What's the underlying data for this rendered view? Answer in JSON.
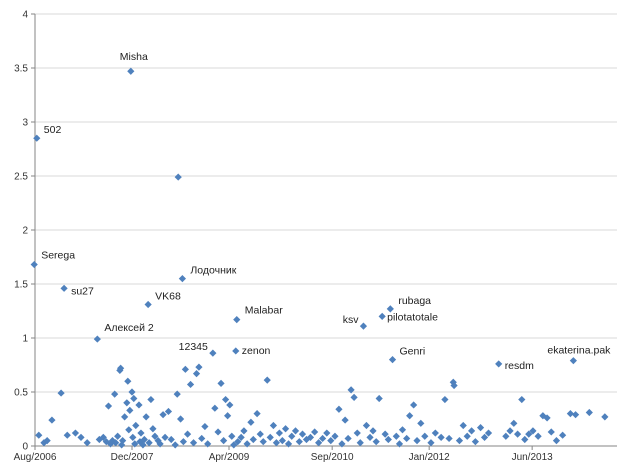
{
  "chart_data": {
    "type": "scatter",
    "title": "",
    "xlabel": "",
    "ylabel": "",
    "x_axis_type": "date",
    "xlim": [
      "2006-08-01",
      "2014-08-01"
    ],
    "ylim": [
      0,
      4
    ],
    "y_ticks": [
      "0",
      "0.5",
      "1",
      "1.5",
      "2",
      "2.5",
      "3",
      "3.5",
      "4"
    ],
    "x_ticks": [
      {
        "date": "2006-08-01",
        "label": "Aug/2006"
      },
      {
        "date": "2007-12-01",
        "label": "Dec/2007"
      },
      {
        "date": "2009-04-01",
        "label": "Apr/2009"
      },
      {
        "date": "2010-09-01",
        "label": "Sep/2010"
      },
      {
        "date": "2012-01-01",
        "label": "Jan/2012"
      },
      {
        "date": "2013-06-01",
        "label": "Jun/2013"
      }
    ],
    "grid": "horizontal",
    "legend": "none",
    "marker": "diamond",
    "marker_color": "#4f81bd",
    "labeled_points": [
      {
        "label": "Misha",
        "x": "2007-11-25",
        "y": 3.47
      },
      {
        "label": "502",
        "x": "2006-08-10",
        "y": 2.85
      },
      {
        "label": "",
        "x": "2008-07-20",
        "y": 2.49
      },
      {
        "label": "Serega",
        "x": "2006-07-28",
        "y": 1.68
      },
      {
        "label": "Лодочник",
        "x": "2008-08-10",
        "y": 1.55
      },
      {
        "label": "su27",
        "x": "2006-12-25",
        "y": 1.46
      },
      {
        "label": "VK68",
        "x": "2008-02-20",
        "y": 1.31
      },
      {
        "label": "rubaga",
        "x": "2011-06-20",
        "y": 1.27
      },
      {
        "label": "pilotatotale",
        "x": "2011-05-10",
        "y": 1.2
      },
      {
        "label": "Malabar",
        "x": "2009-05-10",
        "y": 1.17
      },
      {
        "label": "ksv",
        "x": "2011-02-05",
        "y": 1.11
      },
      {
        "label": "Алексей 2",
        "x": "2007-06-10",
        "y": 0.99
      },
      {
        "label": "12345",
        "x": "2009-01-10",
        "y": 0.86
      },
      {
        "label": "zenon",
        "x": "2009-05-05",
        "y": 0.88
      },
      {
        "label": "Genri",
        "x": "2011-07-01",
        "y": 0.8
      },
      {
        "label": "ekaterina.pak",
        "x": "2013-12-25",
        "y": 0.79
      },
      {
        "label": "resdm",
        "x": "2012-12-15",
        "y": 0.76
      }
    ],
    "points": [
      {
        "x": "2006-08-20",
        "y": 0.1
      },
      {
        "x": "2006-09-15",
        "y": 0.03
      },
      {
        "x": "2006-10-01",
        "y": 0.05
      },
      {
        "x": "2006-10-25",
        "y": 0.24
      },
      {
        "x": "2006-12-10",
        "y": 0.49
      },
      {
        "x": "2007-01-10",
        "y": 0.1
      },
      {
        "x": "2007-02-20",
        "y": 0.12
      },
      {
        "x": "2007-03-20",
        "y": 0.08
      },
      {
        "x": "2007-04-20",
        "y": 0.03
      },
      {
        "x": "2007-06-20",
        "y": 0.06
      },
      {
        "x": "2007-07-10",
        "y": 0.08
      },
      {
        "x": "2007-07-25",
        "y": 0.04
      },
      {
        "x": "2007-08-05",
        "y": 0.37
      },
      {
        "x": "2007-08-15",
        "y": 0.02
      },
      {
        "x": "2007-08-25",
        "y": 0.05
      },
      {
        "x": "2007-09-05",
        "y": 0.48
      },
      {
        "x": "2007-09-10",
        "y": 0.03
      },
      {
        "x": "2007-09-20",
        "y": 0.09
      },
      {
        "x": "2007-10-01",
        "y": 0.7
      },
      {
        "x": "2007-10-05",
        "y": 0.72
      },
      {
        "x": "2007-10-10",
        "y": 0.01
      },
      {
        "x": "2007-10-15",
        "y": 0.05
      },
      {
        "x": "2007-10-25",
        "y": 0.27
      },
      {
        "x": "2007-11-05",
        "y": 0.4
      },
      {
        "x": "2007-11-10",
        "y": 0.6
      },
      {
        "x": "2007-11-15",
        "y": 0.15
      },
      {
        "x": "2007-11-20",
        "y": 0.33
      },
      {
        "x": "2007-12-01",
        "y": 0.5
      },
      {
        "x": "2007-12-05",
        "y": 0.08
      },
      {
        "x": "2007-12-10",
        "y": 0.44
      },
      {
        "x": "2007-12-15",
        "y": 0.02
      },
      {
        "x": "2007-12-20",
        "y": 0.19
      },
      {
        "x": "2008-01-05",
        "y": 0.38
      },
      {
        "x": "2008-01-10",
        "y": 0.04
      },
      {
        "x": "2008-01-15",
        "y": 0.12
      },
      {
        "x": "2008-01-25",
        "y": 0.01
      },
      {
        "x": "2008-02-01",
        "y": 0.06
      },
      {
        "x": "2008-02-10",
        "y": 0.27
      },
      {
        "x": "2008-02-25",
        "y": 0.03
      },
      {
        "x": "2008-03-05",
        "y": 0.43
      },
      {
        "x": "2008-03-15",
        "y": 0.16
      },
      {
        "x": "2008-03-25",
        "y": 0.09
      },
      {
        "x": "2008-04-10",
        "y": 0.05
      },
      {
        "x": "2008-04-20",
        "y": 0.02
      },
      {
        "x": "2008-05-05",
        "y": 0.29
      },
      {
        "x": "2008-05-15",
        "y": 0.08
      },
      {
        "x": "2008-06-01",
        "y": 0.32
      },
      {
        "x": "2008-06-15",
        "y": 0.06
      },
      {
        "x": "2008-07-05",
        "y": 0.01
      },
      {
        "x": "2008-07-15",
        "y": 0.48
      },
      {
        "x": "2008-08-01",
        "y": 0.25
      },
      {
        "x": "2008-08-15",
        "y": 0.04
      },
      {
        "x": "2008-08-25",
        "y": 0.71
      },
      {
        "x": "2008-09-05",
        "y": 0.11
      },
      {
        "x": "2008-09-20",
        "y": 0.57
      },
      {
        "x": "2008-10-05",
        "y": 0.03
      },
      {
        "x": "2008-10-20",
        "y": 0.67
      },
      {
        "x": "2008-11-01",
        "y": 0.73
      },
      {
        "x": "2008-11-15",
        "y": 0.07
      },
      {
        "x": "2008-12-01",
        "y": 0.18
      },
      {
        "x": "2008-12-15",
        "y": 0.02
      },
      {
        "x": "2009-01-20",
        "y": 0.35
      },
      {
        "x": "2009-02-05",
        "y": 0.13
      },
      {
        "x": "2009-02-20",
        "y": 0.58
      },
      {
        "x": "2009-03-05",
        "y": 0.05
      },
      {
        "x": "2009-03-15",
        "y": 0.43
      },
      {
        "x": "2009-03-25",
        "y": 0.28
      },
      {
        "x": "2009-04-05",
        "y": 0.38
      },
      {
        "x": "2009-04-15",
        "y": 0.09
      },
      {
        "x": "2009-04-25",
        "y": 0.01
      },
      {
        "x": "2009-05-15",
        "y": 0.04
      },
      {
        "x": "2009-06-01",
        "y": 0.08
      },
      {
        "x": "2009-06-15",
        "y": 0.14
      },
      {
        "x": "2009-07-01",
        "y": 0.02
      },
      {
        "x": "2009-07-20",
        "y": 0.22
      },
      {
        "x": "2009-08-01",
        "y": 0.06
      },
      {
        "x": "2009-08-20",
        "y": 0.3
      },
      {
        "x": "2009-09-05",
        "y": 0.11
      },
      {
        "x": "2009-09-20",
        "y": 0.04
      },
      {
        "x": "2009-10-10",
        "y": 0.61
      },
      {
        "x": "2009-10-25",
        "y": 0.08
      },
      {
        "x": "2009-11-10",
        "y": 0.19
      },
      {
        "x": "2009-11-25",
        "y": 0.03
      },
      {
        "x": "2009-12-10",
        "y": 0.12
      },
      {
        "x": "2009-12-25",
        "y": 0.05
      },
      {
        "x": "2010-01-10",
        "y": 0.16
      },
      {
        "x": "2010-01-25",
        "y": 0.02
      },
      {
        "x": "2010-02-10",
        "y": 0.09
      },
      {
        "x": "2010-03-01",
        "y": 0.14
      },
      {
        "x": "2010-03-20",
        "y": 0.04
      },
      {
        "x": "2010-04-05",
        "y": 0.11
      },
      {
        "x": "2010-04-25",
        "y": 0.06
      },
      {
        "x": "2010-05-15",
        "y": 0.08
      },
      {
        "x": "2010-06-05",
        "y": 0.13
      },
      {
        "x": "2010-06-25",
        "y": 0.03
      },
      {
        "x": "2010-07-15",
        "y": 0.07
      },
      {
        "x": "2010-08-05",
        "y": 0.12
      },
      {
        "x": "2010-08-25",
        "y": 0.05
      },
      {
        "x": "2010-09-15",
        "y": 0.09
      },
      {
        "x": "2010-10-05",
        "y": 0.34
      },
      {
        "x": "2010-10-20",
        "y": 0.02
      },
      {
        "x": "2010-11-05",
        "y": 0.24
      },
      {
        "x": "2010-11-20",
        "y": 0.07
      },
      {
        "x": "2010-12-05",
        "y": 0.52
      },
      {
        "x": "2010-12-20",
        "y": 0.45
      },
      {
        "x": "2011-01-05",
        "y": 0.12
      },
      {
        "x": "2011-01-20",
        "y": 0.03
      },
      {
        "x": "2011-02-20",
        "y": 0.19
      },
      {
        "x": "2011-03-10",
        "y": 0.08
      },
      {
        "x": "2011-03-25",
        "y": 0.14
      },
      {
        "x": "2011-04-10",
        "y": 0.04
      },
      {
        "x": "2011-04-25",
        "y": 0.44
      },
      {
        "x": "2011-05-25",
        "y": 0.11
      },
      {
        "x": "2011-06-10",
        "y": 0.06
      },
      {
        "x": "2011-07-20",
        "y": 0.09
      },
      {
        "x": "2011-08-05",
        "y": 0.02
      },
      {
        "x": "2011-08-20",
        "y": 0.15
      },
      {
        "x": "2011-09-10",
        "y": 0.07
      },
      {
        "x": "2011-09-25",
        "y": 0.28
      },
      {
        "x": "2011-10-15",
        "y": 0.38
      },
      {
        "x": "2011-11-01",
        "y": 0.05
      },
      {
        "x": "2011-11-20",
        "y": 0.21
      },
      {
        "x": "2011-12-10",
        "y": 0.09
      },
      {
        "x": "2012-01-10",
        "y": 0.03
      },
      {
        "x": "2012-02-01",
        "y": 0.12
      },
      {
        "x": "2012-03-01",
        "y": 0.08
      },
      {
        "x": "2012-03-20",
        "y": 0.43
      },
      {
        "x": "2012-04-10",
        "y": 0.07
      },
      {
        "x": "2012-05-01",
        "y": 0.59
      },
      {
        "x": "2012-05-05",
        "y": 0.56
      },
      {
        "x": "2012-06-01",
        "y": 0.05
      },
      {
        "x": "2012-06-20",
        "y": 0.19
      },
      {
        "x": "2012-07-10",
        "y": 0.09
      },
      {
        "x": "2012-08-01",
        "y": 0.14
      },
      {
        "x": "2012-08-20",
        "y": 0.04
      },
      {
        "x": "2012-09-15",
        "y": 0.17
      },
      {
        "x": "2012-10-05",
        "y": 0.08
      },
      {
        "x": "2012-10-25",
        "y": 0.12
      },
      {
        "x": "2013-01-20",
        "y": 0.09
      },
      {
        "x": "2013-02-10",
        "y": 0.14
      },
      {
        "x": "2013-03-01",
        "y": 0.21
      },
      {
        "x": "2013-03-20",
        "y": 0.11
      },
      {
        "x": "2013-04-10",
        "y": 0.43
      },
      {
        "x": "2013-04-25",
        "y": 0.06
      },
      {
        "x": "2013-05-15",
        "y": 0.11
      },
      {
        "x": "2013-06-05",
        "y": 0.14
      },
      {
        "x": "2013-07-01",
        "y": 0.09
      },
      {
        "x": "2013-07-25",
        "y": 0.28
      },
      {
        "x": "2013-08-15",
        "y": 0.26
      },
      {
        "x": "2013-09-05",
        "y": 0.13
      },
      {
        "x": "2013-10-01",
        "y": 0.05
      },
      {
        "x": "2013-11-01",
        "y": 0.1
      },
      {
        "x": "2013-12-10",
        "y": 0.3
      },
      {
        "x": "2014-01-05",
        "y": 0.29
      },
      {
        "x": "2014-03-15",
        "y": 0.31
      },
      {
        "x": "2014-06-01",
        "y": 0.27
      }
    ]
  }
}
